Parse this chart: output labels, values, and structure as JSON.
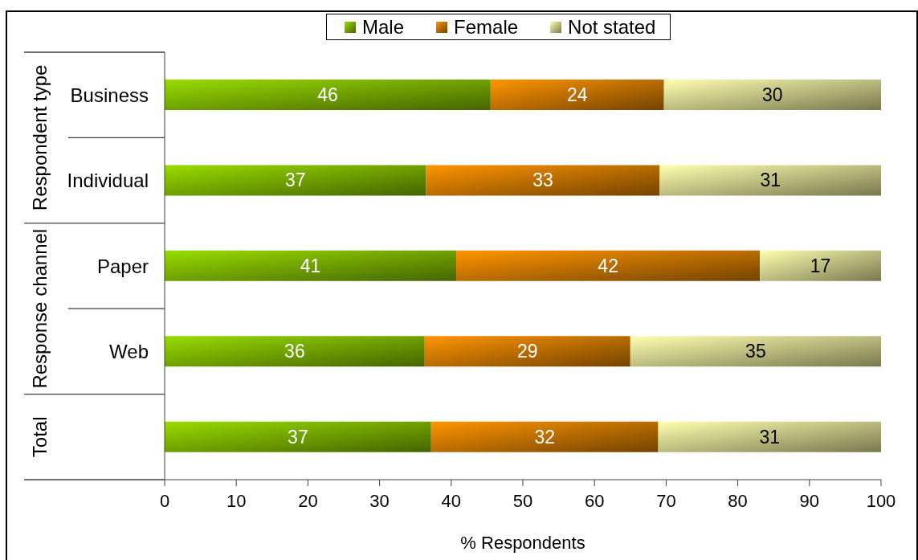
{
  "chart_data": {
    "type": "bar",
    "orientation": "horizontal",
    "stacked": true,
    "categories": [
      "Business",
      "Individual",
      "Paper",
      "Web",
      null
    ],
    "series": [
      {
        "name": "Male",
        "color": "#73a600",
        "values": [
          45.5,
          36.5,
          40.7,
          36.3,
          37.2
        ],
        "value_labels": [
          "46",
          "37",
          "41",
          "36",
          "37"
        ]
      },
      {
        "name": "Female",
        "color": "#c07000",
        "values": [
          24.2,
          32.6,
          42.4,
          28.7,
          31.7
        ],
        "value_labels": [
          "24",
          "33",
          "42",
          "29",
          "32"
        ]
      },
      {
        "name": "Not stated",
        "color": "#c8c884",
        "values": [
          30.3,
          30.9,
          16.9,
          35.0,
          31.1
        ],
        "value_labels": [
          "30",
          "31",
          "17",
          "35",
          "31"
        ]
      }
    ],
    "xlabel": "% Respondents",
    "xlim": [
      0,
      100
    ],
    "xticks": [
      0,
      10,
      20,
      30,
      40,
      50,
      60,
      70,
      80,
      90,
      100
    ],
    "legend": "top",
    "annotations": [
      "Respondent type",
      "Response channel",
      "Total"
    ]
  }
}
